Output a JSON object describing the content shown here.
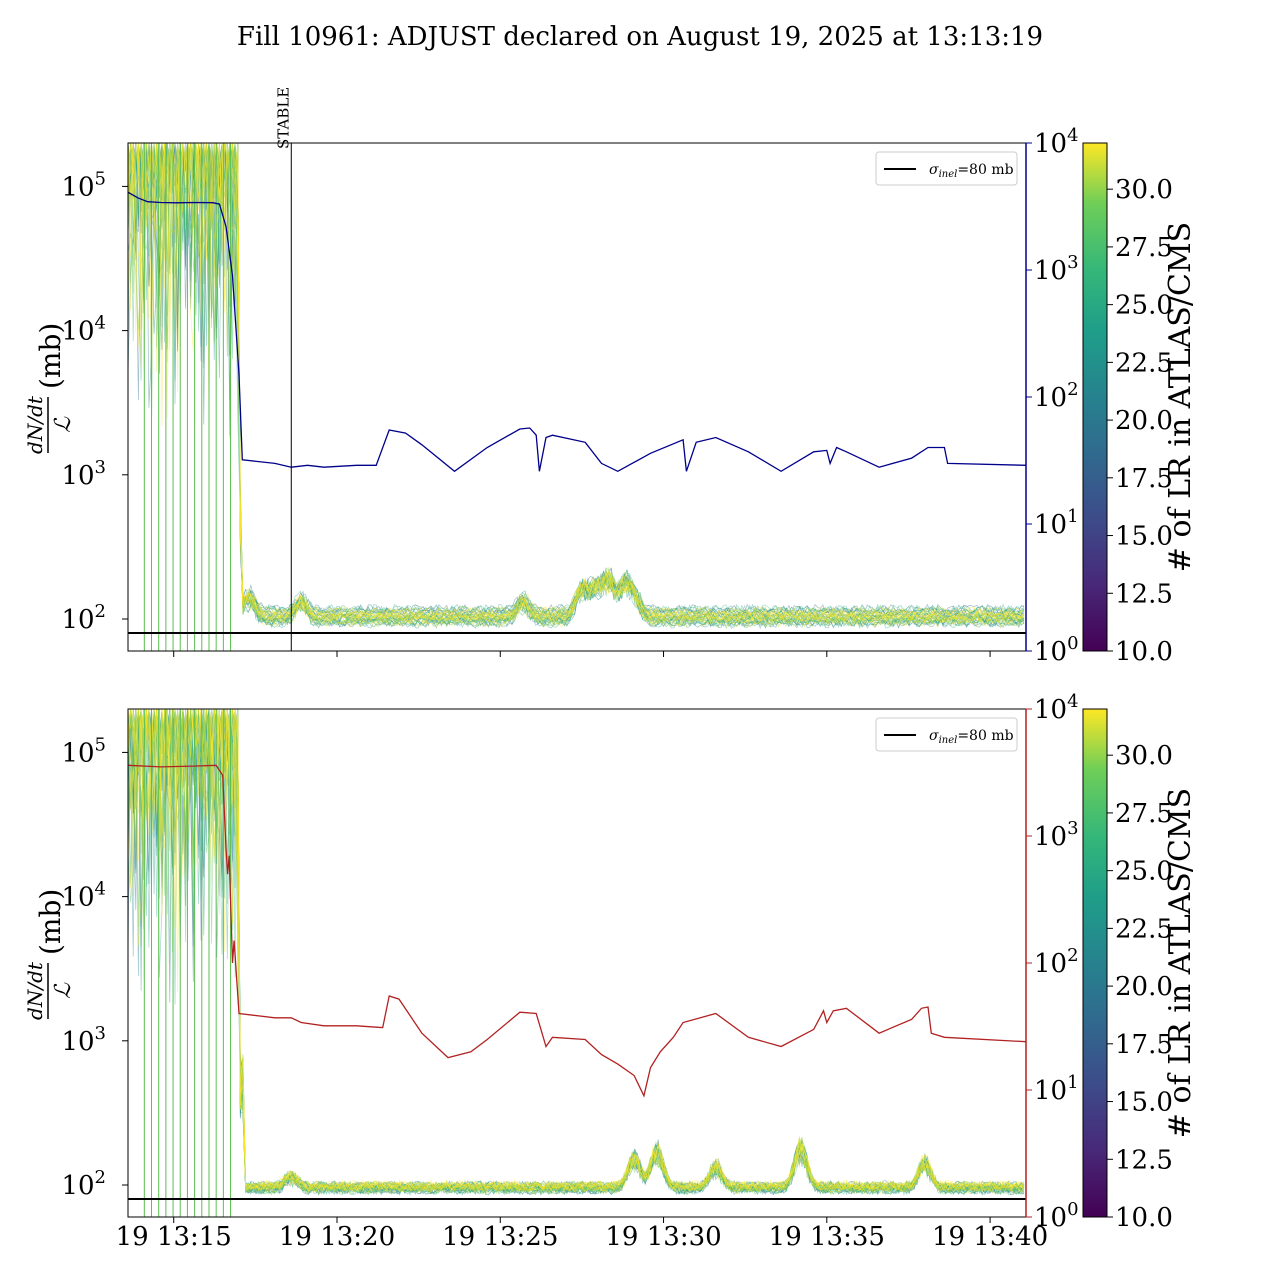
{
  "title": "Fill 10961: ADJUST declared on August 19, 2025 at 13:13:19",
  "chart_data": [
    {
      "type": "line",
      "panel": "top",
      "yscale": "log",
      "ylim": [
        60,
        200000
      ],
      "y_ticks": [
        100,
        1000,
        10000,
        100000
      ],
      "y_tick_labels": [
        "10",
        "10",
        "10",
        "10"
      ],
      "y_tick_exponents": [
        "2",
        "3",
        "4",
        "5"
      ],
      "ylabel_main": "(mb)",
      "y2scale": "log",
      "y2lim": [
        1,
        10000
      ],
      "y2_ticks": [
        1,
        10,
        100,
        1000,
        10000
      ],
      "y2_tick_labels": [
        "10",
        "10",
        "10",
        "10",
        "10"
      ],
      "y2_tick_exponents": [
        "0",
        "1",
        "2",
        "3",
        "4"
      ],
      "y2_color": "#00008b",
      "x_range_min": [
        0,
        27.5
      ],
      "annotation": {
        "x_min": 5.0,
        "label": "STABLE"
      },
      "legend": {
        "label_prefix": "σ",
        "label_sub": "inel",
        "label_suffix": "=80 mb",
        "position": "top-right"
      },
      "reference_line": {
        "y": 80,
        "color": "#000000"
      },
      "secondary_series": {
        "color": "#00008b",
        "points": [
          [
            0,
            4100
          ],
          [
            0.3,
            3700
          ],
          [
            0.6,
            3450
          ],
          [
            1,
            3400
          ],
          [
            1.5,
            3380
          ],
          [
            2,
            3400
          ],
          [
            2.6,
            3390
          ],
          [
            2.8,
            3300
          ],
          [
            3.0,
            2200
          ],
          [
            3.2,
            900
          ],
          [
            3.4,
            150
          ],
          [
            3.5,
            32
          ],
          [
            4.5,
            30
          ],
          [
            5,
            28
          ],
          [
            5.5,
            29
          ],
          [
            6,
            28
          ],
          [
            7,
            29
          ],
          [
            7.6,
            29
          ],
          [
            8,
            55
          ],
          [
            8.5,
            52
          ],
          [
            9,
            42
          ],
          [
            10,
            26
          ],
          [
            11,
            40
          ],
          [
            12,
            56
          ],
          [
            12.3,
            57
          ],
          [
            12.5,
            50
          ],
          [
            12.6,
            26
          ],
          [
            12.8,
            48
          ],
          [
            13,
            50
          ],
          [
            14,
            44
          ],
          [
            14.5,
            30
          ],
          [
            15,
            26
          ],
          [
            16,
            36
          ],
          [
            17,
            46
          ],
          [
            17.1,
            26
          ],
          [
            17.4,
            44
          ],
          [
            18,
            48
          ],
          [
            19,
            37
          ],
          [
            20,
            26
          ],
          [
            21,
            37
          ],
          [
            21.4,
            38
          ],
          [
            21.5,
            30
          ],
          [
            21.7,
            40
          ],
          [
            22,
            37
          ],
          [
            23,
            28
          ],
          [
            24,
            33
          ],
          [
            24.5,
            40
          ],
          [
            25,
            40
          ],
          [
            25.1,
            30
          ],
          [
            27.5,
            29
          ]
        ]
      },
      "bundle": {
        "count": 40,
        "colorbar_range": [
          10,
          32
        ],
        "plateau_start": 3.4,
        "noise_start": 3.5,
        "bumps": [
          [
            3.7,
            130
          ],
          [
            5.3,
            120
          ],
          [
            12.1,
            120
          ],
          [
            13.9,
            150
          ],
          [
            14.3,
            150
          ],
          [
            14.7,
            180
          ],
          [
            15.2,
            160
          ],
          [
            15.5,
            130
          ]
        ]
      }
    },
    {
      "type": "line",
      "panel": "bottom",
      "yscale": "log",
      "ylim": [
        60,
        200000
      ],
      "y_ticks": [
        100,
        1000,
        10000,
        100000
      ],
      "y_tick_labels": [
        "10",
        "10",
        "10",
        "10"
      ],
      "y_tick_exponents": [
        "2",
        "3",
        "4",
        "5"
      ],
      "ylabel_main": "(mb)",
      "y2scale": "log",
      "y2lim": [
        1,
        10000
      ],
      "y2_ticks": [
        1,
        10,
        100,
        1000,
        10000
      ],
      "y2_tick_labels": [
        "10",
        "10",
        "10",
        "10",
        "10"
      ],
      "y2_tick_exponents": [
        "0",
        "1",
        "2",
        "3",
        "4"
      ],
      "y2_color": "#b22222",
      "x_tick_values": [
        1.4,
        6.4,
        11.4,
        16.4,
        21.4,
        26.4
      ],
      "x_tick_labels": [
        "19 13:15",
        "19 13:20",
        "19 13:25",
        "19 13:30",
        "19 13:35",
        "19 13:40"
      ],
      "x_range_min": [
        0,
        27.5
      ],
      "legend": {
        "label_prefix": "σ",
        "label_sub": "inel",
        "label_suffix": "=80 mb",
        "position": "top-right"
      },
      "reference_line": {
        "y": 80,
        "color": "#000000"
      },
      "secondary_series": {
        "color": "#b22222",
        "points": [
          [
            0,
            3600
          ],
          [
            1,
            3500
          ],
          [
            2,
            3550
          ],
          [
            2.7,
            3600
          ],
          [
            2.9,
            3000
          ],
          [
            3.0,
            800
          ],
          [
            3.05,
            500
          ],
          [
            3.1,
            700
          ],
          [
            3.2,
            100
          ],
          [
            3.25,
            150
          ],
          [
            3.4,
            40
          ],
          [
            4.5,
            37
          ],
          [
            5,
            37
          ],
          [
            5.3,
            34
          ],
          [
            6,
            32
          ],
          [
            7,
            32
          ],
          [
            7.8,
            31
          ],
          [
            8,
            55
          ],
          [
            8.3,
            52
          ],
          [
            9,
            28
          ],
          [
            9.8,
            18
          ],
          [
            10.5,
            20
          ],
          [
            11,
            25
          ],
          [
            12,
            41
          ],
          [
            12.5,
            40
          ],
          [
            12.8,
            22
          ],
          [
            13,
            26
          ],
          [
            14,
            25
          ],
          [
            14.5,
            19
          ],
          [
            15,
            16
          ],
          [
            15.5,
            13
          ],
          [
            15.8,
            9
          ],
          [
            16,
            15
          ],
          [
            16.3,
            20
          ],
          [
            16.7,
            26
          ],
          [
            17,
            34
          ],
          [
            18,
            40
          ],
          [
            19,
            26
          ],
          [
            20,
            22
          ],
          [
            21,
            30
          ],
          [
            21.3,
            42
          ],
          [
            21.4,
            34
          ],
          [
            21.6,
            42
          ],
          [
            22,
            44
          ],
          [
            23,
            28
          ],
          [
            24,
            36
          ],
          [
            24.3,
            44
          ],
          [
            24.5,
            45
          ],
          [
            24.6,
            28
          ],
          [
            25,
            26
          ],
          [
            27.5,
            24
          ]
        ]
      },
      "bundle": {
        "count": 40,
        "colorbar_range": [
          10,
          32
        ],
        "plateau_start": 3.4,
        "noise_start": 3.6,
        "bumps": [
          [
            5.0,
            110
          ],
          [
            15.5,
            150
          ],
          [
            16.2,
            170
          ],
          [
            18.0,
            130
          ],
          [
            20.6,
            180
          ],
          [
            24.4,
            140
          ]
        ]
      }
    }
  ],
  "colorbars": [
    {
      "label": "# of LR in ATLAS/CMS",
      "range": [
        10,
        32
      ],
      "ticks": [
        "10.0",
        "12.5",
        "15.0",
        "17.5",
        "20.0",
        "22.5",
        "25.0",
        "27.5",
        "30.0"
      ]
    },
    {
      "label": "# of LR in ATLAS/CMS",
      "range": [
        10,
        32
      ],
      "ticks": [
        "10.0",
        "12.5",
        "15.0",
        "17.5",
        "20.0",
        "22.5",
        "25.0",
        "27.5",
        "30.0"
      ]
    }
  ]
}
